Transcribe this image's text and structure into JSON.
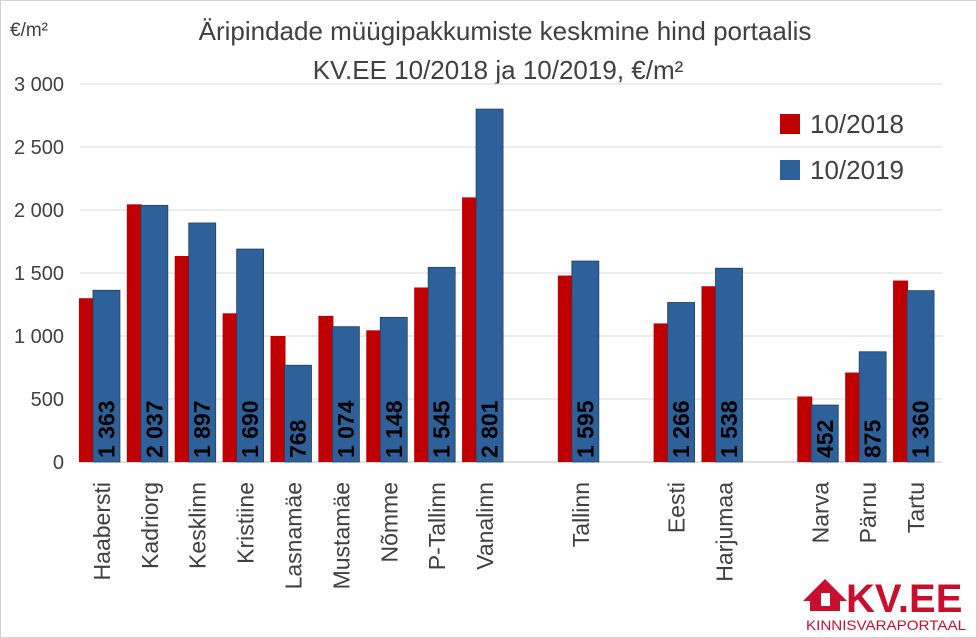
{
  "chart_data": {
    "type": "bar",
    "title": "Äripindade müügipakkumiste keskmine hind portaalis",
    "subtitle": "KV.EE 10/2018 ja 10/2019, €/m²",
    "ylabel": "€/m²",
    "ylim": [
      0,
      3000
    ],
    "yticks": [
      0,
      500,
      1000,
      1500,
      2000,
      2500,
      3000
    ],
    "ytick_labels": [
      "0",
      "500",
      "1 000",
      "1 500",
      "2 000",
      "2 500",
      "3 000"
    ],
    "grid": true,
    "legend_position": "top-right",
    "categories": [
      "Haabersti",
      "Kadriorg",
      "Kesklinn",
      "Kristiine",
      "Lasnamäe",
      "Mustamäe",
      "Nõmme",
      "P-Tallinn",
      "Vanalinn",
      "",
      "Tallinn",
      "",
      "Eesti",
      "Harjumaa",
      "",
      "Narva",
      "Pärnu",
      "Tartu"
    ],
    "series": [
      {
        "name": "10/2018",
        "color": "#c00000",
        "values": [
          1300,
          2045,
          1635,
          1180,
          1000,
          1160,
          1045,
          1385,
          2100,
          null,
          1480,
          null,
          1100,
          1395,
          null,
          520,
          710,
          1440
        ]
      },
      {
        "name": "10/2019",
        "color": "#2e6199",
        "values": [
          1363,
          2037,
          1897,
          1690,
          768,
          1074,
          1148,
          1545,
          2801,
          null,
          1595,
          null,
          1266,
          1538,
          null,
          452,
          875,
          1360
        ],
        "labels": [
          "1 363",
          "2 037",
          "1 897",
          "1 690",
          "768",
          "1 074",
          "1 148",
          "1 545",
          "2 801",
          "",
          "1 595",
          "",
          "1 266",
          "1 538",
          "",
          "452",
          "875",
          "1 360"
        ]
      }
    ]
  },
  "logo": {
    "text": "KV.EE",
    "tagline": "KINNISVARAPORTAAL",
    "color": "#c8102e"
  }
}
